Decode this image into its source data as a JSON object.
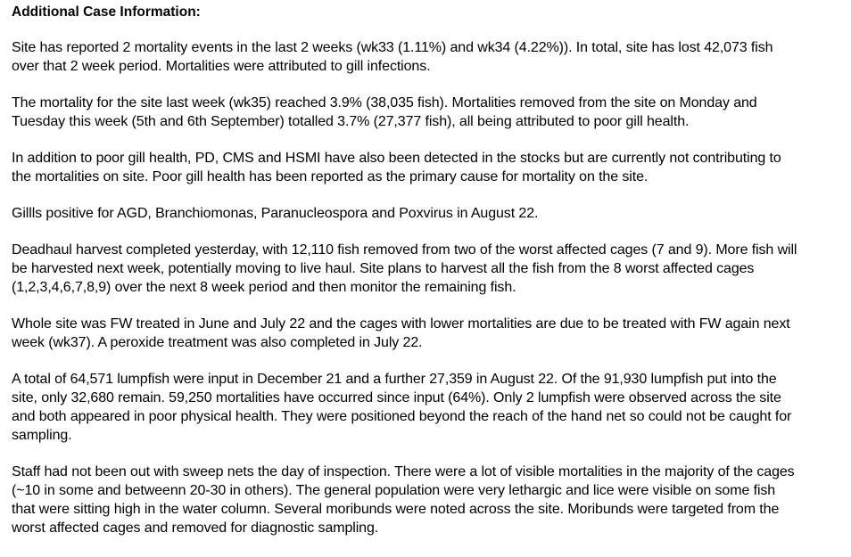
{
  "document": {
    "title": "Additional Case Information:",
    "paragraphs": [
      [
        "Site has reported 2 mortality events in the last 2 weeks (wk33 (1.11%) and wk34 (4.22%)). In total, site has lost 42,073 fish",
        "over that 2 week period. Mortalities were attributed to gill infections."
      ],
      [
        "The mortality for the site last week (wk35) reached 3.9% (38,035 fish). Mortalities removed from the site on Monday and",
        "Tuesday this week (5th and 6th September) totalled 3.7% (27,377 fish), all being attributed to poor gill health."
      ],
      [
        "In addition to poor gill health, PD, CMS and HSMI have also been detected in the stocks but are currently not contributing to",
        "the mortalities on site. Poor gill health has been reported as the primary cause for mortality on the site."
      ],
      [
        "Gillls positive for AGD, Branchiomonas, Paranucleospora and Poxvirus in August 22."
      ],
      [
        "Deadhaul harvest completed yesterday, with 12,110 fish removed from two of the worst affected cages (7 and 9). More fish will",
        "be harvested next week, potentially moving to live haul. Site plans to harvest all the fish from the 8 worst affected cages",
        "(1,2,3,4,6,7,8,9) over the next 8 week period and then monitor the remaining fish."
      ],
      [
        "Whole site was FW treated in June and July 22 and the cages with lower mortalities are due to be treated with FW again next",
        "week (wk37). A peroxide treatment was also completed in July 22."
      ],
      [
        "A total of 64,571 lumpfish were input in December 21 and a further 27,359 in August 22. Of the 91,930 lumpfish put into the",
        "site, only 32,680 remain. 59,250 mortalities have occurred since input (64%). Only 2 lumpfish were observed across the site",
        "and both appeared in poor physical health. They were positioned beyond the reach of the hand net so could not be caught for",
        "sampling."
      ],
      [
        "Staff had not been out with sweep nets the day of inspection. There were a lot of visible mortalities in the majority of the cages",
        "(~10 in some and betweenn 20-30 in others). The general population were very lethargic and lice were visible on some fish",
        "that were sitting high in the water column. Several moribunds were noted across the site. Moribunds were targeted from the",
        "worst affected cages and removed for diagnostic sampling."
      ]
    ]
  }
}
